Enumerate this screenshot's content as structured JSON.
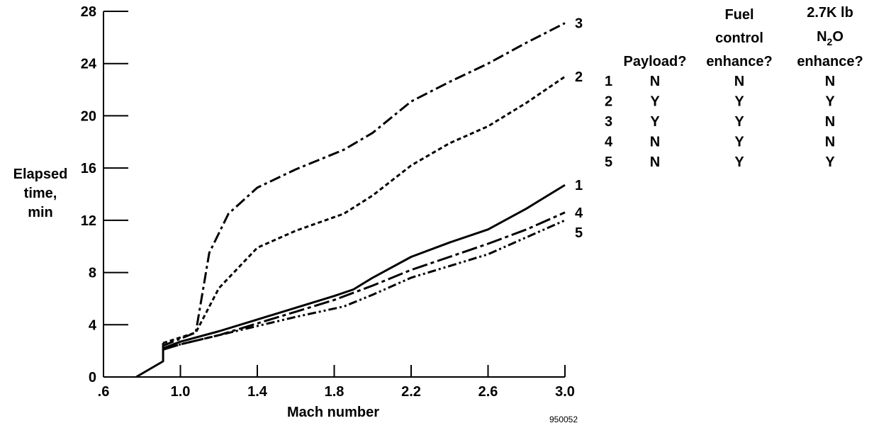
{
  "chart_data": {
    "type": "line",
    "xlabel": "Mach number",
    "ylabel_lines": [
      "Elapsed",
      "time,",
      "min"
    ],
    "xlim": [
      0.6,
      3.0
    ],
    "ylim": [
      0,
      28
    ],
    "x_ticks": [
      ".6",
      "1.0",
      "1.4",
      "1.8",
      "2.2",
      "2.6",
      "3.0"
    ],
    "x_tick_values": [
      0.6,
      1.0,
      1.4,
      1.8,
      2.2,
      2.6,
      3.0
    ],
    "y_ticks": [
      "0",
      "4",
      "8",
      "12",
      "16",
      "20",
      "24",
      "28"
    ],
    "y_tick_values": [
      0,
      4,
      8,
      12,
      16,
      20,
      24,
      28
    ],
    "grid": false,
    "figure_id": "950052",
    "common_start": {
      "x": [
        0.77,
        0.91,
        0.91
      ],
      "y": [
        0,
        1.2,
        2.6
      ]
    },
    "series": [
      {
        "name": "1",
        "dash": "solid",
        "x": [
          0.91,
          1.0,
          1.2,
          1.4,
          1.6,
          1.8,
          1.9,
          2.0,
          2.2,
          2.4,
          2.6,
          2.8,
          3.0
        ],
        "y": [
          2.2,
          2.7,
          3.5,
          4.4,
          5.3,
          6.2,
          6.7,
          7.6,
          9.2,
          10.3,
          11.3,
          12.9,
          14.7
        ]
      },
      {
        "name": "2",
        "dash": "dotted",
        "x": [
          0.91,
          1.08,
          1.2,
          1.4,
          1.6,
          1.85,
          2.0,
          2.2,
          2.4,
          2.6,
          2.8,
          3.0
        ],
        "y": [
          2.6,
          3.4,
          6.8,
          9.9,
          11.2,
          12.5,
          13.9,
          16.2,
          17.9,
          19.2,
          21.0,
          23.0
        ]
      },
      {
        "name": "3",
        "dash": "dash-dot",
        "x": [
          0.91,
          1.08,
          1.15,
          1.25,
          1.4,
          1.6,
          1.85,
          2.0,
          2.2,
          2.4,
          2.6,
          2.8,
          3.0
        ],
        "y": [
          2.4,
          3.4,
          9.5,
          12.5,
          14.5,
          15.9,
          17.4,
          18.7,
          21.1,
          22.6,
          24.0,
          25.6,
          27.1
        ]
      },
      {
        "name": "4",
        "dash": "long-dash-dot",
        "x": [
          0.91,
          1.0,
          1.2,
          1.4,
          1.6,
          1.8,
          2.0,
          2.2,
          2.4,
          2.6,
          2.8,
          3.0
        ],
        "y": [
          2.1,
          2.5,
          3.2,
          4.1,
          5.0,
          5.9,
          7.0,
          8.2,
          9.2,
          10.2,
          11.3,
          12.6
        ]
      },
      {
        "name": "5",
        "dash": "dash-dot-dot",
        "x": [
          0.91,
          1.0,
          1.2,
          1.4,
          1.6,
          1.85,
          2.0,
          2.2,
          2.4,
          2.6,
          2.8,
          3.0
        ],
        "y": [
          2.1,
          2.5,
          3.2,
          3.9,
          4.6,
          5.4,
          6.3,
          7.6,
          8.5,
          9.4,
          10.7,
          12.0
        ]
      }
    ]
  },
  "legend_table": {
    "headers": [
      {
        "lines": [
          "Payload?"
        ]
      },
      {
        "lines": [
          "Fuel",
          "control",
          "enhance?"
        ]
      },
      {
        "lines": [
          "2.7K lb",
          "N",
          "O",
          "enhance?"
        ],
        "subscript": "2"
      }
    ],
    "rows": [
      {
        "id": "1",
        "payload": "N",
        "fuel": "N",
        "n2o": "N"
      },
      {
        "id": "2",
        "payload": "Y",
        "fuel": "Y",
        "n2o": "Y"
      },
      {
        "id": "3",
        "payload": "Y",
        "fuel": "Y",
        "n2o": "N"
      },
      {
        "id": "4",
        "payload": "N",
        "fuel": "Y",
        "n2o": "N"
      },
      {
        "id": "5",
        "payload": "N",
        "fuel": "Y",
        "n2o": "Y"
      }
    ]
  }
}
